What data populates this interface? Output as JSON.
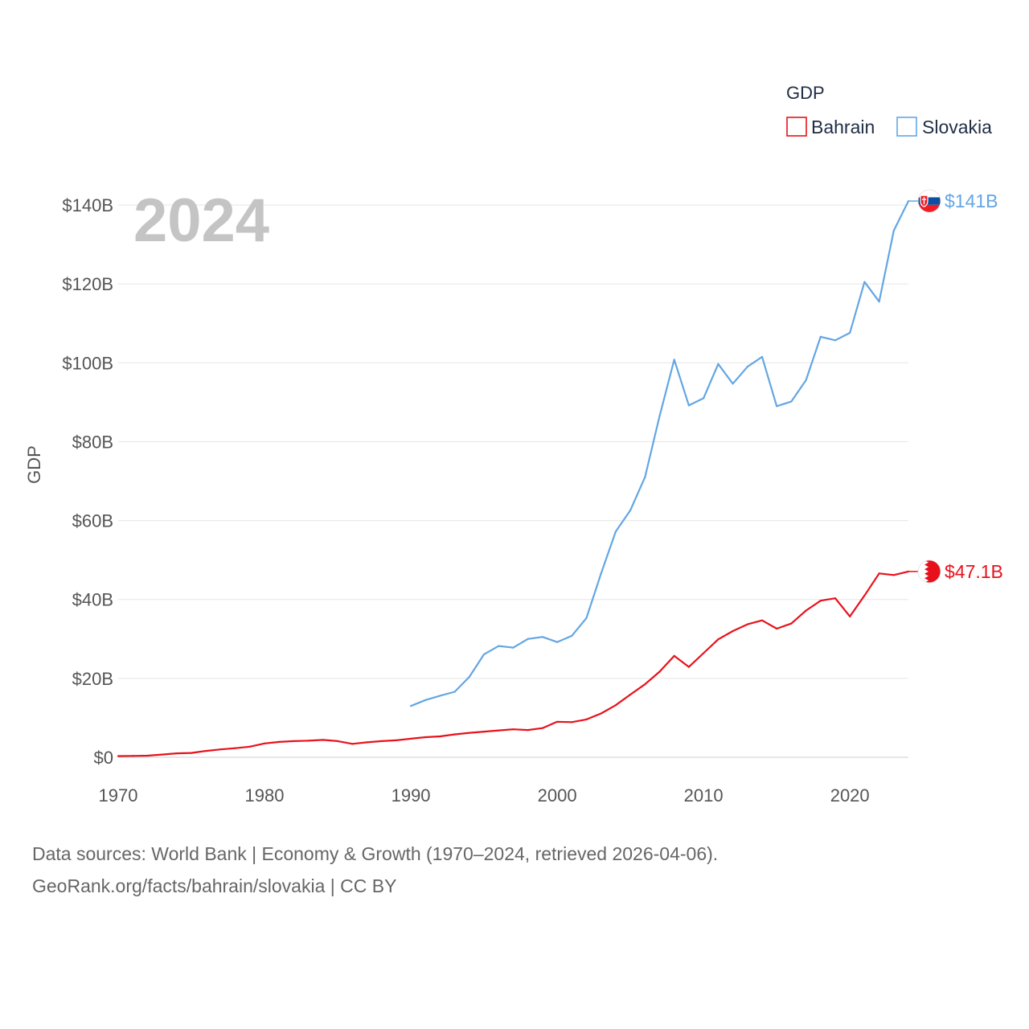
{
  "chart_data": {
    "type": "line",
    "year_label": "2024",
    "ylabel": "GDP",
    "legend_title": "GDP",
    "xlim": [
      1970,
      2024
    ],
    "ylim": [
      0,
      140
    ],
    "x_ticks": [
      "1970",
      "1980",
      "1990",
      "2000",
      "2010",
      "2020"
    ],
    "y_ticks": [
      "$0",
      "$20B",
      "$40B",
      "$60B",
      "$80B",
      "$100B",
      "$120B",
      "$140B"
    ],
    "unit": "billions USD",
    "series": [
      {
        "name": "Bahrain",
        "color": "#e8111b",
        "end_label": "$47.1B",
        "flag_icon": "bahrain-flag-icon",
        "x": [
          1970,
          1971,
          1972,
          1973,
          1974,
          1975,
          1976,
          1977,
          1978,
          1979,
          1980,
          1981,
          1982,
          1983,
          1984,
          1985,
          1986,
          1987,
          1988,
          1989,
          1990,
          1991,
          1992,
          1993,
          1994,
          1995,
          1996,
          1997,
          1998,
          1999,
          2000,
          2001,
          2002,
          2003,
          2004,
          2005,
          2006,
          2007,
          2008,
          2009,
          2010,
          2011,
          2012,
          2013,
          2014,
          2015,
          2016,
          2017,
          2018,
          2019,
          2020,
          2021,
          2022,
          2023,
          2024
        ],
        "values": [
          0.3,
          0.35,
          0.4,
          0.7,
          1.0,
          1.1,
          1.6,
          2.0,
          2.3,
          2.7,
          3.5,
          3.9,
          4.1,
          4.2,
          4.4,
          4.1,
          3.4,
          3.8,
          4.1,
          4.3,
          4.7,
          5.1,
          5.3,
          5.8,
          6.2,
          6.5,
          6.8,
          7.1,
          6.9,
          7.4,
          9.0,
          8.9,
          9.6,
          11.1,
          13.2,
          15.9,
          18.5,
          21.7,
          25.7,
          22.9,
          26.4,
          29.9,
          32.0,
          33.7,
          34.7,
          32.6,
          33.9,
          37.2,
          39.7,
          40.3,
          35.7,
          41.0,
          46.6,
          46.2,
          47.1
        ]
      },
      {
        "name": "Slovakia",
        "color": "#63a6e4",
        "end_label": "$141B",
        "flag_icon": "slovakia-flag-icon",
        "x": [
          1990,
          1991,
          1992,
          1993,
          1994,
          1995,
          1996,
          1997,
          1998,
          1999,
          2000,
          2001,
          2002,
          2003,
          2004,
          2005,
          2006,
          2007,
          2008,
          2009,
          2010,
          2011,
          2012,
          2013,
          2014,
          2015,
          2016,
          2017,
          2018,
          2019,
          2020,
          2021,
          2022,
          2023,
          2024
        ],
        "values": [
          13.0,
          14.5,
          15.6,
          16.6,
          20.4,
          26.1,
          28.2,
          27.8,
          30.0,
          30.5,
          29.2,
          30.8,
          35.3,
          46.6,
          57.2,
          62.6,
          71.0,
          86.5,
          100.8,
          89.2,
          91.0,
          99.7,
          94.7,
          99.0,
          101.5,
          89.0,
          90.2,
          95.6,
          106.6,
          105.7,
          107.6,
          120.5,
          115.5,
          133.5,
          141.0
        ]
      }
    ]
  },
  "footer": {
    "line1": "Data sources: World Bank | Economy & Growth (1970–2024, retrieved 2026-04-06).",
    "line2": "GeoRank.org/facts/bahrain/slovakia | CC BY"
  }
}
